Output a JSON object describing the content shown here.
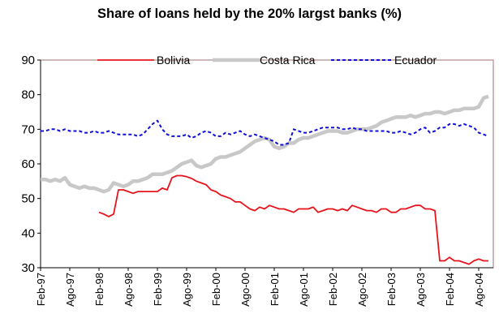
{
  "chart_data": {
    "type": "line",
    "title": "Share of loans held by the 20% largst banks (%)",
    "xlabel": "",
    "ylabel": "",
    "ylim": [
      30,
      90
    ],
    "yticks": [
      30,
      40,
      50,
      60,
      70,
      80,
      90
    ],
    "xticks": [
      "Feb-97",
      "Ago-97",
      "Feb-98",
      "Ago-98",
      "Feb-99",
      "Ago-99",
      "Feb-00",
      "Ago-00",
      "Feb-01",
      "Ago-01",
      "Feb-02",
      "Ago-02",
      "Feb-03",
      "Ago-03",
      "Feb-04",
      "Ago-04"
    ],
    "grid": false,
    "legend_position": "top",
    "series": [
      {
        "name": "Bolivia",
        "color": "#e8141c",
        "style": "solid",
        "points": [
          [
            12,
            46
          ],
          [
            13,
            45.5
          ],
          [
            14,
            44.8
          ],
          [
            15,
            45.5
          ],
          [
            16,
            52.5
          ],
          [
            17,
            52.5
          ],
          [
            18,
            52
          ],
          [
            19,
            51.5
          ],
          [
            20,
            52
          ],
          [
            21,
            52
          ],
          [
            22,
            52
          ],
          [
            23,
            52
          ],
          [
            24,
            52
          ],
          [
            25,
            53
          ],
          [
            26,
            52.5
          ],
          [
            27,
            56
          ],
          [
            28,
            56.6
          ],
          [
            29,
            56.6
          ],
          [
            30,
            56.3
          ],
          [
            31,
            55.8
          ],
          [
            32,
            55
          ],
          [
            33,
            54.5
          ],
          [
            34,
            54
          ],
          [
            35,
            52.5
          ],
          [
            36,
            52
          ],
          [
            37,
            51
          ],
          [
            38,
            50.5
          ],
          [
            39,
            50
          ],
          [
            40,
            49
          ],
          [
            41,
            49
          ],
          [
            42,
            48
          ],
          [
            43,
            47
          ],
          [
            44,
            46.5
          ],
          [
            45,
            47.5
          ],
          [
            46,
            47
          ],
          [
            47,
            48
          ],
          [
            48,
            47.5
          ],
          [
            49,
            47
          ],
          [
            50,
            47
          ],
          [
            51,
            46.5
          ],
          [
            52,
            46
          ],
          [
            53,
            47
          ],
          [
            54,
            47
          ],
          [
            55,
            47
          ],
          [
            56,
            47.5
          ],
          [
            57,
            46
          ],
          [
            58,
            46.5
          ],
          [
            59,
            47
          ],
          [
            60,
            47
          ],
          [
            61,
            46.5
          ],
          [
            62,
            47
          ],
          [
            63,
            46.5
          ],
          [
            64,
            48
          ],
          [
            65,
            47.5
          ],
          [
            66,
            47
          ],
          [
            67,
            46.5
          ],
          [
            68,
            46.5
          ],
          [
            69,
            46
          ],
          [
            70,
            47
          ],
          [
            71,
            47
          ],
          [
            72,
            46
          ],
          [
            73,
            46
          ],
          [
            74,
            47
          ],
          [
            75,
            47
          ],
          [
            76,
            47.5
          ],
          [
            77,
            48
          ],
          [
            78,
            48
          ],
          [
            79,
            47
          ],
          [
            80,
            47
          ],
          [
            81,
            46.5
          ],
          [
            82,
            32
          ],
          [
            83,
            32
          ],
          [
            84,
            33
          ],
          [
            85,
            32
          ],
          [
            86,
            32
          ],
          [
            87,
            31.5
          ],
          [
            88,
            31
          ],
          [
            89,
            32
          ],
          [
            90,
            32.5
          ],
          [
            91,
            32
          ],
          [
            92,
            32
          ]
        ]
      },
      {
        "name": "Costa Rica",
        "color": "#c8c8c8",
        "style": "solid",
        "points": [
          [
            0,
            55.5
          ],
          [
            1,
            55.5
          ],
          [
            2,
            55
          ],
          [
            3,
            55.5
          ],
          [
            4,
            55
          ],
          [
            5,
            56
          ],
          [
            6,
            54
          ],
          [
            7,
            53.5
          ],
          [
            8,
            53
          ],
          [
            9,
            53.5
          ],
          [
            10,
            53
          ],
          [
            11,
            53
          ],
          [
            12,
            52.5
          ],
          [
            13,
            52
          ],
          [
            14,
            52.5
          ],
          [
            15,
            54.5
          ],
          [
            16,
            54
          ],
          [
            17,
            53.5
          ],
          [
            18,
            54
          ],
          [
            19,
            55
          ],
          [
            20,
            55
          ],
          [
            21,
            55.5
          ],
          [
            22,
            56
          ],
          [
            23,
            57
          ],
          [
            24,
            57
          ],
          [
            25,
            57
          ],
          [
            26,
            57.5
          ],
          [
            27,
            58
          ],
          [
            28,
            59
          ],
          [
            29,
            60
          ],
          [
            30,
            60.5
          ],
          [
            31,
            61
          ],
          [
            32,
            59.5
          ],
          [
            33,
            59
          ],
          [
            34,
            59.5
          ],
          [
            35,
            60
          ],
          [
            36,
            61.5
          ],
          [
            37,
            62
          ],
          [
            38,
            62
          ],
          [
            39,
            62.5
          ],
          [
            40,
            63
          ],
          [
            41,
            63.5
          ],
          [
            42,
            64.5
          ],
          [
            43,
            65.5
          ],
          [
            44,
            66.5
          ],
          [
            45,
            67
          ],
          [
            46,
            67.5
          ],
          [
            47,
            67
          ],
          [
            48,
            65
          ],
          [
            49,
            64.5
          ],
          [
            50,
            65
          ],
          [
            51,
            66
          ],
          [
            52,
            66
          ],
          [
            53,
            67
          ],
          [
            54,
            67.5
          ],
          [
            55,
            67.5
          ],
          [
            56,
            68
          ],
          [
            57,
            68.5
          ],
          [
            58,
            69
          ],
          [
            59,
            69.5
          ],
          [
            60,
            69.5
          ],
          [
            61,
            69.5
          ],
          [
            62,
            69
          ],
          [
            63,
            69
          ],
          [
            64,
            69.5
          ],
          [
            65,
            70
          ],
          [
            66,
            70
          ],
          [
            67,
            70
          ],
          [
            68,
            70.5
          ],
          [
            69,
            71
          ],
          [
            70,
            72
          ],
          [
            71,
            72.5
          ],
          [
            72,
            73
          ],
          [
            73,
            73.5
          ],
          [
            74,
            73.5
          ],
          [
            75,
            73.5
          ],
          [
            76,
            74
          ],
          [
            77,
            73.5
          ],
          [
            78,
            74
          ],
          [
            79,
            74.5
          ],
          [
            80,
            74.5
          ],
          [
            81,
            75
          ],
          [
            82,
            75
          ],
          [
            83,
            74.5
          ],
          [
            84,
            75
          ],
          [
            85,
            75.5
          ],
          [
            86,
            75.5
          ],
          [
            87,
            76
          ],
          [
            88,
            76
          ],
          [
            89,
            76
          ],
          [
            90,
            76.5
          ],
          [
            91,
            79
          ],
          [
            92,
            79.5
          ]
        ]
      },
      {
        "name": "Ecuador",
        "color": "#1010d8",
        "style": "dashed",
        "points": [
          [
            0,
            69.5
          ],
          [
            1,
            69.5
          ],
          [
            2,
            70
          ],
          [
            3,
            70
          ],
          [
            4,
            69.5
          ],
          [
            5,
            70
          ],
          [
            6,
            69.5
          ],
          [
            7,
            69.5
          ],
          [
            8,
            69.5
          ],
          [
            9,
            69
          ],
          [
            10,
            69
          ],
          [
            11,
            69.5
          ],
          [
            12,
            69
          ],
          [
            13,
            69
          ],
          [
            14,
            69.5
          ],
          [
            15,
            69
          ],
          [
            16,
            68.5
          ],
          [
            17,
            68.5
          ],
          [
            18,
            68.5
          ],
          [
            19,
            68.5
          ],
          [
            20,
            68
          ],
          [
            21,
            68.5
          ],
          [
            22,
            70
          ],
          [
            23,
            71.5
          ],
          [
            24,
            72.5
          ],
          [
            25,
            70
          ],
          [
            26,
            68.5
          ],
          [
            27,
            68
          ],
          [
            28,
            68
          ],
          [
            29,
            68
          ],
          [
            30,
            68.5
          ],
          [
            31,
            67.5
          ],
          [
            32,
            68
          ],
          [
            33,
            69
          ],
          [
            34,
            69.5
          ],
          [
            35,
            69
          ],
          [
            36,
            68
          ],
          [
            37,
            68
          ],
          [
            38,
            69
          ],
          [
            39,
            68.5
          ],
          [
            40,
            69
          ],
          [
            41,
            69.5
          ],
          [
            42,
            68.5
          ],
          [
            43,
            68
          ],
          [
            44,
            68.5
          ],
          [
            45,
            68
          ],
          [
            46,
            67.5
          ],
          [
            47,
            67
          ],
          [
            48,
            66.5
          ],
          [
            49,
            65.5
          ],
          [
            50,
            65.5
          ],
          [
            51,
            66
          ],
          [
            52,
            70
          ],
          [
            53,
            69.5
          ],
          [
            54,
            69
          ],
          [
            55,
            69
          ],
          [
            56,
            69.5
          ],
          [
            57,
            70
          ],
          [
            58,
            70.5
          ],
          [
            59,
            70.5
          ],
          [
            60,
            70.5
          ],
          [
            61,
            70.5
          ],
          [
            62,
            70
          ],
          [
            63,
            70
          ],
          [
            64,
            70.5
          ],
          [
            65,
            70
          ],
          [
            66,
            70
          ],
          [
            67,
            69.5
          ],
          [
            68,
            69.5
          ],
          [
            69,
            69.5
          ],
          [
            70,
            69.5
          ],
          [
            71,
            69.5
          ],
          [
            72,
            69
          ],
          [
            73,
            69
          ],
          [
            74,
            69.5
          ],
          [
            75,
            69
          ],
          [
            76,
            68.5
          ],
          [
            77,
            69
          ],
          [
            78,
            70
          ],
          [
            79,
            70.5
          ],
          [
            80,
            69
          ],
          [
            81,
            69.5
          ],
          [
            82,
            70.5
          ],
          [
            83,
            70.5
          ],
          [
            84,
            71.5
          ],
          [
            85,
            71.5
          ],
          [
            86,
            71
          ],
          [
            87,
            71.5
          ],
          [
            88,
            71
          ],
          [
            89,
            70.5
          ],
          [
            90,
            69
          ],
          [
            91,
            68.5
          ],
          [
            92,
            68
          ]
        ]
      }
    ]
  }
}
